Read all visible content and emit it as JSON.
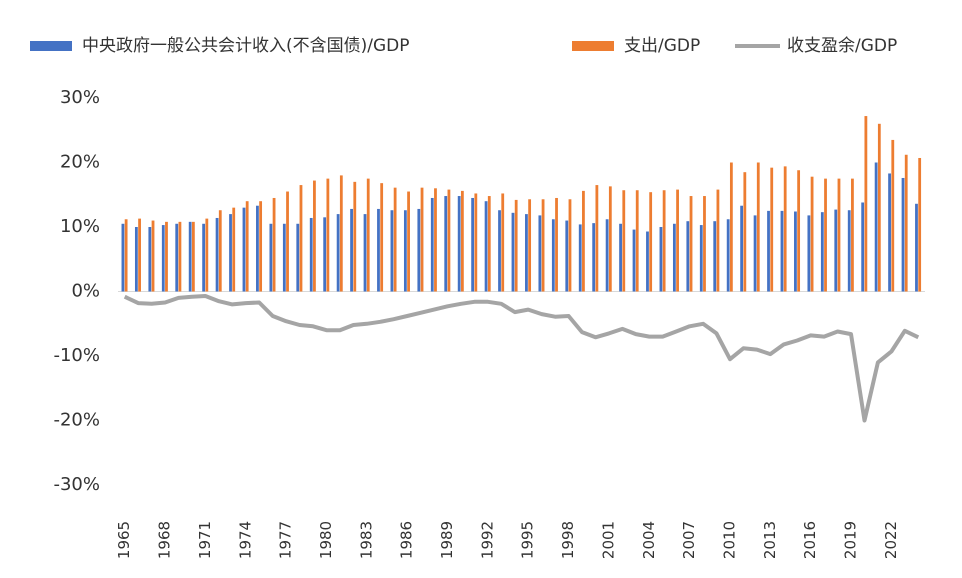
{
  "chart_data": {
    "type": "bar",
    "categories": [
      "1965",
      null,
      null,
      "1968",
      null,
      null,
      "1971",
      null,
      null,
      "1974",
      null,
      null,
      "1977",
      null,
      null,
      "1980",
      null,
      null,
      "1983",
      null,
      null,
      "1986",
      null,
      null,
      "1989",
      null,
      null,
      "1992",
      null,
      null,
      "1995",
      null,
      null,
      "1998",
      null,
      null,
      "2001",
      null,
      null,
      "2004",
      null,
      null,
      "2007",
      null,
      null,
      "2010",
      null,
      null,
      "2013",
      null,
      null,
      "2016",
      null,
      null,
      "2019",
      null,
      null,
      "2022",
      null,
      null
    ],
    "series": [
      {
        "name": "中央政府一般公共会计收入(不含国债)/GDP",
        "type": "bar",
        "color": "#4472c4",
        "values": [
          10.5,
          10.0,
          10.0,
          10.3,
          10.5,
          10.8,
          10.5,
          11.4,
          12.0,
          13.0,
          13.3,
          10.5,
          10.5,
          10.5,
          11.4,
          11.5,
          12.0,
          12.8,
          12.0,
          12.8,
          12.6,
          12.6,
          12.8,
          14.5,
          14.8,
          14.8,
          14.5,
          14.0,
          12.6,
          12.2,
          12.0,
          11.8,
          11.2,
          11.0,
          10.4,
          10.6,
          11.2,
          10.5,
          9.6,
          9.3,
          10.0,
          10.5,
          10.9,
          10.3,
          10.9,
          11.2,
          13.3,
          11.8,
          12.5,
          12.5,
          12.4,
          11.8,
          12.3,
          12.7,
          12.6,
          13.8,
          20.0,
          18.3,
          17.6,
          13.6
        ]
      },
      {
        "name": "支出/GDP",
        "type": "bar",
        "color": "#ed7d31",
        "values": [
          11.2,
          11.3,
          11.0,
          10.8,
          10.8,
          10.8,
          11.3,
          12.6,
          13.0,
          14.0,
          14.0,
          14.5,
          15.5,
          16.5,
          17.2,
          17.5,
          18.0,
          17.0,
          17.5,
          16.8,
          16.1,
          15.5,
          16.1,
          16.0,
          15.8,
          15.6,
          15.2,
          14.8,
          15.2,
          14.2,
          14.3,
          14.3,
          14.5,
          14.3,
          15.6,
          16.5,
          16.3,
          15.7,
          15.7,
          15.4,
          15.7,
          15.8,
          14.8,
          14.8,
          15.8,
          20.0,
          18.5,
          20.0,
          19.2,
          19.4,
          18.8,
          17.8,
          17.5,
          17.5,
          17.5,
          27.2,
          26.0,
          23.5,
          21.2,
          20.7
        ]
      },
      {
        "name": "收支盈余/GDP",
        "type": "line",
        "color": "#a5a5a5",
        "values": [
          -0.8,
          -1.8,
          -1.9,
          -1.7,
          -1.0,
          -0.8,
          -0.7,
          -1.5,
          -2.0,
          -1.8,
          -1.7,
          -3.8,
          -4.6,
          -5.2,
          -5.4,
          -6.0,
          -6.0,
          -5.2,
          -5.0,
          -4.7,
          -4.3,
          -3.8,
          -3.3,
          -2.8,
          -2.3,
          -1.9,
          -1.6,
          -1.6,
          -1.9,
          -3.2,
          -2.8,
          -3.5,
          -3.9,
          -3.8,
          -6.3,
          -7.1,
          -6.5,
          -5.8,
          -6.6,
          -7.0,
          -7.0,
          -6.2,
          -5.4,
          -5.0,
          -6.5,
          -10.5,
          -8.8,
          -9.0,
          -9.7,
          -8.2,
          -7.6,
          -6.8,
          -7.0,
          -6.2,
          -6.6,
          -20.0,
          -11.0,
          -9.3,
          -6.1,
          -7.1
        ]
      }
    ],
    "ylim": [
      -30,
      30
    ],
    "yticks": [
      {
        "value": -30,
        "label": "-30%"
      },
      {
        "value": -20,
        "label": "-20%"
      },
      {
        "value": -10,
        "label": "-10%"
      },
      {
        "value": 0,
        "label": "0%"
      },
      {
        "value": 10,
        "label": "10%"
      },
      {
        "value": 20,
        "label": "20%"
      },
      {
        "value": 30,
        "label": "30%"
      }
    ],
    "grid": false,
    "legend": "top"
  }
}
